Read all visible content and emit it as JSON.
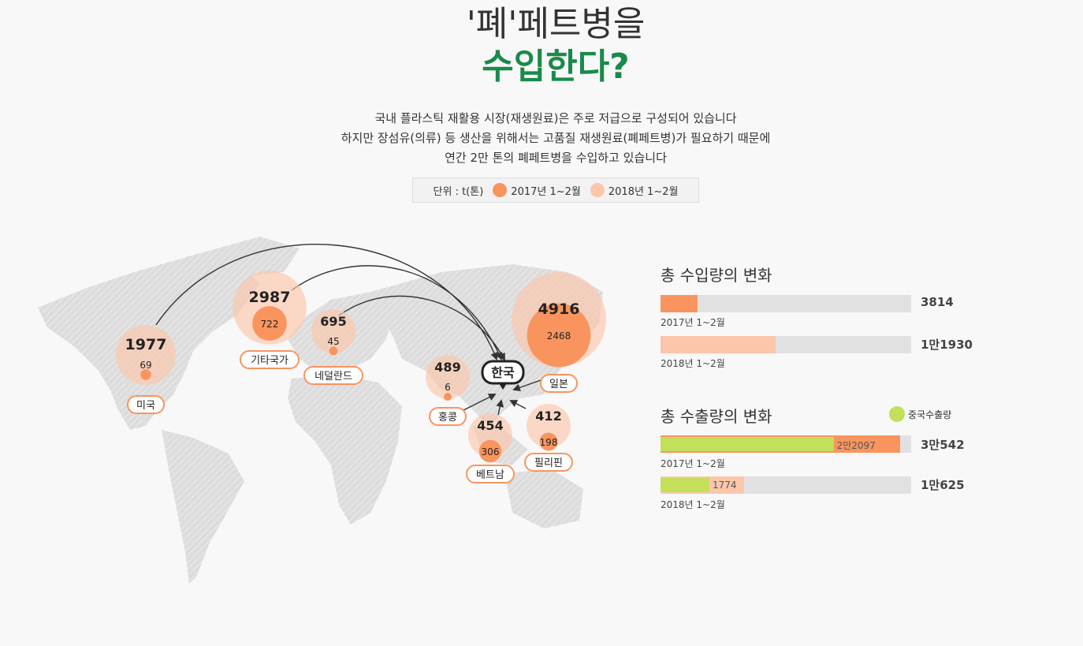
{
  "header": {
    "title_line1": "'폐'페트병을",
    "title_line2": "수입한다?",
    "description": [
      "국내 플라스틱 재활용 시장(재생원료)은 주로 저급으로 구성되어 있습니다",
      "하지만 장섬유(의류) 등 생산을 위해서는 고품질 재생원료(폐페트병)가 필요하기 때문에",
      "연간 2만 톤의 폐페트병을 수입하고 있습니다"
    ]
  },
  "legend": {
    "unit": "단위 : t(톤)",
    "series_2017": "2017년 1~2월",
    "series_2018": "2018년 1~2월",
    "color_2017": "#fa945e",
    "color_2018": "#fcc6aa"
  },
  "map": {
    "destination": "한국",
    "countries": [
      {
        "name": "미국",
        "v2018": "1977",
        "v2017": "69"
      },
      {
        "name": "기타국가",
        "v2018": "2987",
        "v2017": "722"
      },
      {
        "name": "네덜란드",
        "v2018": "695",
        "v2017": "45"
      },
      {
        "name": "홍콩",
        "v2018": "489",
        "v2017": "6"
      },
      {
        "name": "베트남",
        "v2018": "454",
        "v2017": "306"
      },
      {
        "name": "필리핀",
        "v2018": "412",
        "v2017": "198"
      },
      {
        "name": "일본",
        "v2018": "4916",
        "v2017": "2468"
      }
    ]
  },
  "imports": {
    "title": "총 수입량의 변화",
    "bars": [
      {
        "label": "2017년 1~2월",
        "total_text": "3814",
        "value": 3814
      },
      {
        "label": "2018년 1~2월",
        "total_text": "1만1930",
        "value": 11930
      }
    ]
  },
  "exports": {
    "title": "총 수출량의 변화",
    "china_legend": "중국수출량",
    "china_color": "#c2e05a",
    "bars": [
      {
        "label": "2017년 1~2월",
        "total_text": "3만542",
        "value": 30542,
        "china_text": "2만2097",
        "china_value": 22097
      },
      {
        "label": "2018년 1~2월",
        "total_text": "1만625",
        "value": 10625,
        "china_text": "1774",
        "china_value": 1774
      }
    ]
  },
  "chart_data": [
    {
      "type": "scatter",
      "title": "",
      "series": [
        {
          "name": "2017년 1~2월",
          "categories": [
            "미국",
            "기타국가",
            "네덜란드",
            "홍콩",
            "베트남",
            "필리핀",
            "일본"
          ],
          "values": [
            69,
            722,
            45,
            6,
            306,
            198,
            2468
          ]
        },
        {
          "name": "2018년 1~2월",
          "categories": [
            "미국",
            "기타국가",
            "네덜란드",
            "홍콩",
            "베트남",
            "필리핀",
            "일본"
          ],
          "values": [
            1977,
            2987,
            695,
            489,
            454,
            412,
            4916
          ]
        }
      ]
    },
    {
      "type": "bar",
      "title": "총 수입량의 변화",
      "categories": [
        "2017년 1~2월",
        "2018년 1~2월"
      ],
      "values": [
        3814,
        11930
      ]
    },
    {
      "type": "bar",
      "title": "총 수출량의 변화",
      "categories": [
        "2017년 1~2월",
        "2018년 1~2월"
      ],
      "series": [
        {
          "name": "",
          "values": [
            30542,
            10625
          ]
        },
        {
          "name": "중국수출량",
          "values": [
            22097,
            1774
          ]
        }
      ]
    }
  ]
}
